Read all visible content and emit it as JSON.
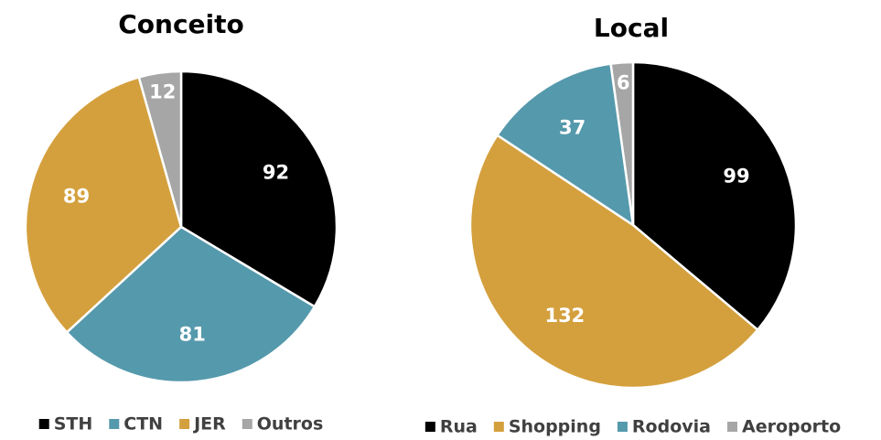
{
  "chart_data": [
    {
      "type": "pie",
      "title": "Conceito",
      "categories": [
        "STH",
        "CTN",
        "JER",
        "Outros"
      ],
      "values": [
        92,
        81,
        89,
        12
      ],
      "colors": [
        "#000000",
        "#5599ac",
        "#d4a03e",
        "#a6a6a6"
      ]
    },
    {
      "type": "pie",
      "title": "Local",
      "categories": [
        "Rua",
        "Shopping",
        "Rodovia",
        "Aeroporto"
      ],
      "values": [
        99,
        132,
        37,
        6
      ],
      "colors": [
        "#000000",
        "#d4a03e",
        "#5599ac",
        "#a6a6a6"
      ]
    }
  ]
}
